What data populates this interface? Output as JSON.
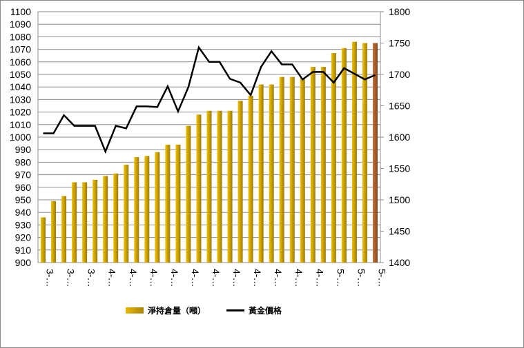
{
  "chart_data": {
    "type": "bar",
    "title": "",
    "categories": [
      "3-…",
      "3-…",
      "3-…",
      "3-…",
      "3-…",
      "3-…",
      "4-…",
      "4-…",
      "4-…",
      "4-…",
      "4-…",
      "4-…",
      "4-…",
      "4-…",
      "4-…",
      "4-…",
      "4-…",
      "4-…",
      "4-…",
      "4-…",
      "4-…",
      "4-…",
      "4-…",
      "4-…",
      "4-…",
      "4-…",
      "4-…",
      "4-…",
      "5-…",
      "5-…",
      "5-…",
      "5-…",
      "5-…"
    ],
    "x_tick_labels": [
      "3-…",
      "3-…",
      "3-…",
      "4-…",
      "4-…",
      "4-…",
      "4-…",
      "4-…",
      "4-…",
      "4-…",
      "4-…",
      "4-…",
      "4-…",
      "4-…",
      "5-…",
      "5-…",
      "5-…"
    ],
    "series": [
      {
        "name": "淨持倉量（噸）",
        "type": "bar",
        "axis": "left",
        "color": "#c9a000",
        "highlight_last_color": "#a0522d",
        "values": [
          936,
          949,
          953,
          964,
          964,
          966,
          969,
          971,
          978,
          984,
          985,
          988,
          994,
          994,
          1009,
          1018,
          1021,
          1021,
          1021,
          1029,
          1033,
          1042,
          1042,
          1048,
          1048,
          1047,
          1056,
          1056,
          1067,
          1071,
          1076,
          1075,
          1075
        ]
      },
      {
        "name": "黃金價格",
        "type": "line",
        "axis": "right",
        "color": "#000000",
        "values": [
          1606,
          1606,
          1635,
          1618,
          1618,
          1618,
          1577,
          1618,
          1614,
          1649,
          1649,
          1648,
          1681,
          1641,
          1680,
          1743,
          1720,
          1720,
          1693,
          1687,
          1667,
          1712,
          1737,
          1716,
          1716,
          1692,
          1704,
          1704,
          1687,
          1710,
          1701,
          1692,
          1699
        ]
      }
    ],
    "left_axis": {
      "ylim": [
        900,
        1100
      ],
      "step": 10
    },
    "right_axis": {
      "ylim": [
        1400,
        1800
      ],
      "step": 50
    },
    "grid": true,
    "legend_position": "bottom"
  },
  "legend": {
    "bar_label": "淨持倉量（噸）",
    "line_label": "黃金價格"
  }
}
